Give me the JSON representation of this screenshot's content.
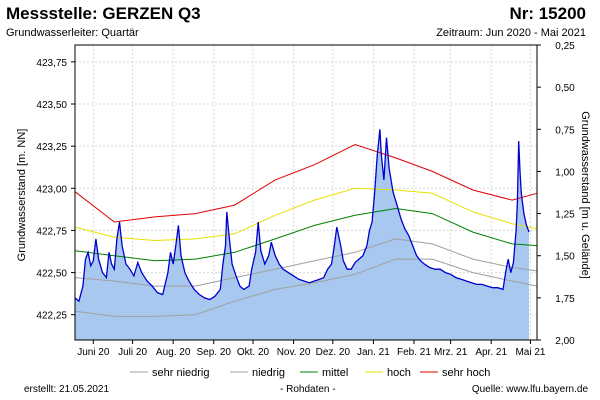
{
  "header": {
    "title": "Messstelle: GERZEN Q3",
    "number": "Nr: 15200",
    "aquifer": "Grundwasserleiter: Quartär",
    "period": "Zeitraum: Jun 2020 - Mai 2021"
  },
  "footer": {
    "created": "erstellt:  21.05.2021",
    "raw": "- Rohdaten -",
    "source": "Quelle: www.lfu.bayern.de"
  },
  "colors": {
    "measured_line": "#0000cc",
    "measured_fill": "#a8c8f0",
    "sehr_niedrig": "#a0a0a0",
    "niedrig": "#a0a0a0",
    "mittel": "#008000",
    "hoch": "#e8e000",
    "sehr_hoch": "#e00000",
    "grid": "#d8d8d8"
  },
  "chart_data": {
    "type": "line",
    "x_axis": {
      "range": [
        "2020-06-01",
        "2021-05-20"
      ],
      "ticks": [
        {
          "label": "Juni 20",
          "date": "2020-06-15"
        },
        {
          "label": "Juli 20",
          "date": "2020-07-15"
        },
        {
          "label": "Aug. 20",
          "date": "2020-08-15"
        },
        {
          "label": "Sep. 20",
          "date": "2020-09-15"
        },
        {
          "label": "Okt. 20",
          "date": "2020-10-15"
        },
        {
          "label": "Nov. 20",
          "date": "2020-11-15"
        },
        {
          "label": "Dez. 20",
          "date": "2020-12-15"
        },
        {
          "label": "Jan. 21",
          "date": "2021-01-15"
        },
        {
          "label": "Feb. 21",
          "date": "2021-02-15"
        },
        {
          "label": "Mrz. 21",
          "date": "2021-03-15"
        },
        {
          "label": "Apr. 21",
          "date": "2021-04-15"
        },
        {
          "label": "Mai 21",
          "date": "2021-05-15"
        }
      ]
    },
    "y_left": {
      "label": "Grundwasserstand [m. NN]",
      "min": 422.1,
      "max": 423.85,
      "ticks": [
        "422,25",
        "422,50",
        "422,75",
        "423,00",
        "423,25",
        "423,50",
        "423,75"
      ],
      "tick_values": [
        422.25,
        422.5,
        422.75,
        423.0,
        423.25,
        423.5,
        423.75
      ]
    },
    "y_right": {
      "label": "Grundwasserstand [m u. Gelände]",
      "ticks": [
        "0,25",
        "0,50",
        "0,75",
        "1,00",
        "1,25",
        "1,50",
        "1,75",
        "2,00"
      ],
      "tick_values_m_nn": [
        423.85,
        423.6,
        423.35,
        423.1,
        422.85,
        422.6,
        422.35,
        422.1
      ]
    },
    "grid": true,
    "legend_position": "bottom",
    "measured": {
      "name": "Rohdaten",
      "points": [
        [
          "2020-06-01",
          422.35
        ],
        [
          "2020-06-04",
          422.33
        ],
        [
          "2020-06-07",
          422.42
        ],
        [
          "2020-06-09",
          422.58
        ],
        [
          "2020-06-11",
          422.62
        ],
        [
          "2020-06-13",
          422.54
        ],
        [
          "2020-06-15",
          422.57
        ],
        [
          "2020-06-17",
          422.7
        ],
        [
          "2020-06-19",
          422.58
        ],
        [
          "2020-06-22",
          422.5
        ],
        [
          "2020-06-25",
          422.47
        ],
        [
          "2020-06-27",
          422.62
        ],
        [
          "2020-06-29",
          422.55
        ],
        [
          "2020-07-01",
          422.52
        ],
        [
          "2020-07-03",
          422.7
        ],
        [
          "2020-07-05",
          422.8
        ],
        [
          "2020-07-07",
          422.66
        ],
        [
          "2020-07-10",
          422.55
        ],
        [
          "2020-07-13",
          422.52
        ],
        [
          "2020-07-16",
          422.48
        ],
        [
          "2020-07-19",
          422.56
        ],
        [
          "2020-07-22",
          422.5
        ],
        [
          "2020-07-26",
          422.45
        ],
        [
          "2020-07-30",
          422.42
        ],
        [
          "2020-08-03",
          422.38
        ],
        [
          "2020-08-07",
          422.37
        ],
        [
          "2020-08-11",
          422.5
        ],
        [
          "2020-08-13",
          422.62
        ],
        [
          "2020-08-15",
          422.55
        ],
        [
          "2020-08-17",
          422.66
        ],
        [
          "2020-08-19",
          422.78
        ],
        [
          "2020-08-21",
          422.6
        ],
        [
          "2020-08-24",
          422.5
        ],
        [
          "2020-08-27",
          422.45
        ],
        [
          "2020-08-31",
          422.4
        ],
        [
          "2020-09-04",
          422.37
        ],
        [
          "2020-09-08",
          422.35
        ],
        [
          "2020-09-12",
          422.34
        ],
        [
          "2020-09-16",
          422.36
        ],
        [
          "2020-09-20",
          422.4
        ],
        [
          "2020-09-22",
          422.55
        ],
        [
          "2020-09-24",
          422.66
        ],
        [
          "2020-09-25",
          422.86
        ],
        [
          "2020-09-27",
          422.7
        ],
        [
          "2020-09-29",
          422.55
        ],
        [
          "2020-10-02",
          422.48
        ],
        [
          "2020-10-05",
          422.42
        ],
        [
          "2020-10-08",
          422.4
        ],
        [
          "2020-10-12",
          422.42
        ],
        [
          "2020-10-14",
          422.52
        ],
        [
          "2020-10-17",
          422.62
        ],
        [
          "2020-10-19",
          422.8
        ],
        [
          "2020-10-21",
          422.63
        ],
        [
          "2020-10-24",
          422.55
        ],
        [
          "2020-10-27",
          422.6
        ],
        [
          "2020-10-29",
          422.68
        ],
        [
          "2020-11-01",
          422.6
        ],
        [
          "2020-11-04",
          422.55
        ],
        [
          "2020-11-07",
          422.52
        ],
        [
          "2020-11-11",
          422.5
        ],
        [
          "2020-11-15",
          422.48
        ],
        [
          "2020-11-19",
          422.46
        ],
        [
          "2020-11-23",
          422.45
        ],
        [
          "2020-11-27",
          422.44
        ],
        [
          "2020-12-01",
          422.45
        ],
        [
          "2020-12-05",
          422.46
        ],
        [
          "2020-12-08",
          422.47
        ],
        [
          "2020-12-11",
          422.52
        ],
        [
          "2020-12-14",
          422.55
        ],
        [
          "2020-12-16",
          422.65
        ],
        [
          "2020-12-18",
          422.77
        ],
        [
          "2020-12-21",
          422.66
        ],
        [
          "2020-12-23",
          422.57
        ],
        [
          "2020-12-26",
          422.52
        ],
        [
          "2020-12-29",
          422.52
        ],
        [
          "2021-01-01",
          422.56
        ],
        [
          "2021-01-04",
          422.58
        ],
        [
          "2021-01-07",
          422.6
        ],
        [
          "2021-01-10",
          422.66
        ],
        [
          "2021-01-12",
          422.75
        ],
        [
          "2021-01-14",
          422.8
        ],
        [
          "2021-01-16",
          422.98
        ],
        [
          "2021-01-18",
          423.2
        ],
        [
          "2021-01-20",
          423.35
        ],
        [
          "2021-01-21",
          423.2
        ],
        [
          "2021-01-23",
          423.05
        ],
        [
          "2021-01-25",
          423.3
        ],
        [
          "2021-01-27",
          423.12
        ],
        [
          "2021-01-30",
          422.98
        ],
        [
          "2021-02-02",
          422.9
        ],
        [
          "2021-02-05",
          422.82
        ],
        [
          "2021-02-08",
          422.76
        ],
        [
          "2021-02-11",
          422.72
        ],
        [
          "2021-02-14",
          422.66
        ],
        [
          "2021-02-17",
          422.6
        ],
        [
          "2021-02-20",
          422.57
        ],
        [
          "2021-02-23",
          422.55
        ],
        [
          "2021-02-27",
          422.53
        ],
        [
          "2021-03-03",
          422.52
        ],
        [
          "2021-03-07",
          422.52
        ],
        [
          "2021-03-11",
          422.5
        ],
        [
          "2021-03-15",
          422.49
        ],
        [
          "2021-03-19",
          422.47
        ],
        [
          "2021-03-23",
          422.46
        ],
        [
          "2021-03-27",
          422.45
        ],
        [
          "2021-03-31",
          422.44
        ],
        [
          "2021-04-04",
          422.43
        ],
        [
          "2021-04-08",
          422.43
        ],
        [
          "2021-04-12",
          422.42
        ],
        [
          "2021-04-16",
          422.41
        ],
        [
          "2021-04-20",
          422.41
        ],
        [
          "2021-04-24",
          422.4
        ],
        [
          "2021-04-26",
          422.5
        ],
        [
          "2021-04-28",
          422.58
        ],
        [
          "2021-04-30",
          422.5
        ],
        [
          "2021-05-02",
          422.56
        ],
        [
          "2021-05-04",
          422.75
        ],
        [
          "2021-05-05",
          422.92
        ],
        [
          "2021-05-06",
          423.28
        ],
        [
          "2021-05-07",
          423.1
        ],
        [
          "2021-05-08",
          422.97
        ],
        [
          "2021-05-10",
          422.85
        ],
        [
          "2021-05-12",
          422.78
        ],
        [
          "2021-05-14",
          422.74
        ]
      ]
    },
    "series": [
      {
        "name": "sehr niedrig",
        "x": [
          "2020-06-01",
          "2020-07-01",
          "2020-08-01",
          "2020-09-01",
          "2020-10-01",
          "2020-11-01",
          "2020-12-01",
          "2021-01-01",
          "2021-02-01",
          "2021-03-01",
          "2021-04-01",
          "2021-05-01",
          "2021-05-20"
        ],
        "values": [
          422.27,
          422.24,
          422.24,
          422.25,
          422.33,
          422.4,
          422.44,
          422.49,
          422.58,
          422.58,
          422.5,
          422.45,
          422.42
        ]
      },
      {
        "name": "niedrig",
        "x": [
          "2020-06-01",
          "2020-07-01",
          "2020-08-01",
          "2020-09-01",
          "2020-10-01",
          "2020-11-01",
          "2020-12-01",
          "2021-01-01",
          "2021-02-01",
          "2021-03-01",
          "2021-04-01",
          "2021-05-01",
          "2021-05-20"
        ],
        "values": [
          422.47,
          422.45,
          422.42,
          422.42,
          422.47,
          422.52,
          422.57,
          422.62,
          422.7,
          422.67,
          422.58,
          422.53,
          422.51
        ]
      },
      {
        "name": "mittel",
        "x": [
          "2020-06-01",
          "2020-07-01",
          "2020-08-01",
          "2020-09-01",
          "2020-10-01",
          "2020-11-01",
          "2020-12-01",
          "2021-01-01",
          "2021-02-01",
          "2021-03-01",
          "2021-04-01",
          "2021-05-01",
          "2021-05-20"
        ],
        "values": [
          422.63,
          422.6,
          422.57,
          422.58,
          422.62,
          422.7,
          422.78,
          422.84,
          422.88,
          422.85,
          422.74,
          422.67,
          422.66
        ]
      },
      {
        "name": "hoch",
        "x": [
          "2020-06-01",
          "2020-07-01",
          "2020-08-01",
          "2020-09-01",
          "2020-10-01",
          "2020-11-01",
          "2020-12-01",
          "2021-01-01",
          "2021-02-01",
          "2021-03-01",
          "2021-04-01",
          "2021-05-01",
          "2021-05-20"
        ],
        "values": [
          422.77,
          422.71,
          422.69,
          422.7,
          422.73,
          422.84,
          422.93,
          423.0,
          422.99,
          422.97,
          422.86,
          422.79,
          422.76
        ]
      },
      {
        "name": "sehr hoch",
        "x": [
          "2020-06-01",
          "2020-07-01",
          "2020-08-01",
          "2020-09-01",
          "2020-10-01",
          "2020-11-01",
          "2020-12-01",
          "2021-01-01",
          "2021-02-01",
          "2021-03-01",
          "2021-04-01",
          "2021-05-01",
          "2021-05-20"
        ],
        "values": [
          422.98,
          422.8,
          422.83,
          422.85,
          422.9,
          423.05,
          423.14,
          423.26,
          423.18,
          423.1,
          422.99,
          422.93,
          422.97
        ]
      }
    ]
  }
}
